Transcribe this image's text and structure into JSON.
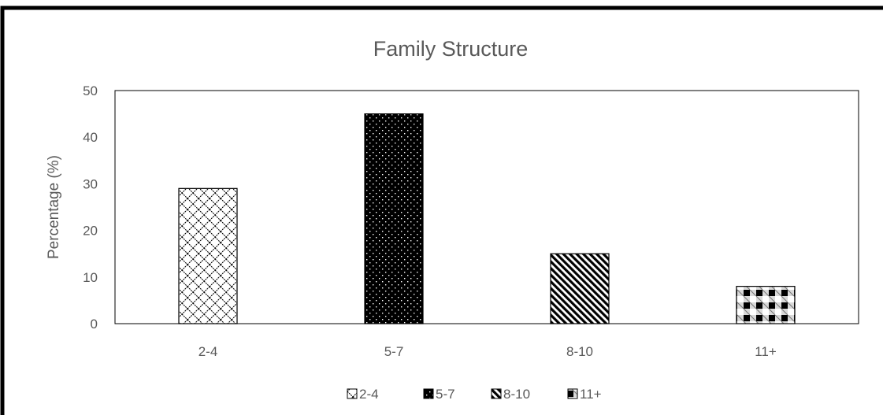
{
  "chart_data": {
    "type": "bar",
    "title": "Family Structure",
    "xlabel": "",
    "ylabel": "Percentage (%)",
    "ylim": [
      0,
      50
    ],
    "yticks": [
      0,
      10,
      20,
      30,
      40,
      50
    ],
    "grid": false,
    "legend_position": "bottom",
    "categories": [
      "2-4",
      "5-7",
      "8-10",
      "11+"
    ],
    "values": [
      29,
      45,
      15,
      8
    ],
    "legend": [
      "2-4",
      "5-7",
      "8-10",
      "11+"
    ]
  }
}
